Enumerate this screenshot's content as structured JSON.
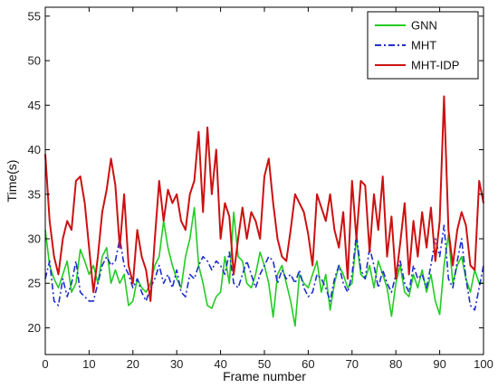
{
  "chart_data": {
    "type": "line",
    "xlabel": "Frame number",
    "ylabel": "Time(s)",
    "xlim": [
      0,
      100
    ],
    "ylim": [
      17,
      56
    ],
    "xticks": [
      0,
      10,
      20,
      30,
      40,
      50,
      60,
      70,
      80,
      90,
      100
    ],
    "yticks": [
      20,
      25,
      30,
      35,
      40,
      45,
      50,
      55
    ],
    "grid": false,
    "legend_position": "top-right",
    "series": [
      {
        "name": "GNN",
        "color": "#22cc22",
        "dash": "solid",
        "x": [
          0,
          1,
          2,
          3,
          4,
          5,
          6,
          7,
          8,
          9,
          10,
          11,
          12,
          13,
          14,
          15,
          16,
          17,
          18,
          19,
          20,
          21,
          22,
          23,
          24,
          25,
          26,
          27,
          28,
          29,
          30,
          31,
          32,
          33,
          34,
          35,
          36,
          37,
          38,
          39,
          40,
          41,
          42,
          43,
          44,
          45,
          46,
          47,
          48,
          49,
          50,
          51,
          52,
          53,
          54,
          55,
          56,
          57,
          58,
          59,
          60,
          61,
          62,
          63,
          64,
          65,
          66,
          67,
          68,
          69,
          70,
          71,
          72,
          73,
          74,
          75,
          76,
          77,
          78,
          79,
          80,
          81,
          82,
          83,
          84,
          85,
          86,
          87,
          88,
          89,
          90,
          91,
          92,
          93,
          94,
          95,
          96,
          97,
          98,
          99,
          100
        ],
        "values": [
          31.0,
          27.0,
          25.5,
          24.5,
          26.0,
          27.5,
          24.0,
          25.0,
          28.8,
          27.5,
          26.0,
          27.0,
          25.0,
          28.0,
          29.0,
          25.0,
          26.5,
          25.0,
          26.0,
          22.5,
          23.0,
          25.5,
          24.5,
          24.0,
          25.0,
          27.0,
          28.0,
          32.0,
          29.0,
          27.0,
          25.5,
          24.5,
          28.0,
          30.0,
          33.5,
          27.0,
          25.0,
          22.5,
          22.2,
          23.5,
          24.0,
          28.0,
          25.0,
          33.0,
          28.0,
          27.5,
          25.0,
          24.5,
          26.0,
          28.5,
          27.0,
          25.0,
          21.2,
          26.0,
          27.0,
          25.0,
          23.0,
          20.2,
          26.0,
          25.0,
          24.5,
          26.0,
          27.5,
          24.0,
          26.0,
          22.0,
          25.0,
          27.0,
          26.0,
          24.5,
          25.0,
          30.0,
          26.0,
          25.5,
          27.0,
          24.5,
          27.5,
          26.0,
          24.5,
          21.3,
          25.0,
          27.0,
          24.0,
          23.5,
          26.0,
          24.5,
          26.5,
          24.0,
          26.0,
          23.0,
          21.5,
          27.0,
          30.5,
          25.0,
          27.0,
          28.0,
          25.5,
          24.0,
          26.5,
          25.0,
          25.0
        ]
      },
      {
        "name": "MHT",
        "color": "#1f2fcc",
        "dash": "dashdot",
        "x": [
          0,
          1,
          2,
          3,
          4,
          5,
          6,
          7,
          8,
          9,
          10,
          11,
          12,
          13,
          14,
          15,
          16,
          17,
          18,
          19,
          20,
          21,
          22,
          23,
          24,
          25,
          26,
          27,
          28,
          29,
          30,
          31,
          32,
          33,
          34,
          35,
          36,
          37,
          38,
          39,
          40,
          41,
          42,
          43,
          44,
          45,
          46,
          47,
          48,
          49,
          50,
          51,
          52,
          53,
          54,
          55,
          56,
          57,
          58,
          59,
          60,
          61,
          62,
          63,
          64,
          65,
          66,
          67,
          68,
          69,
          70,
          71,
          72,
          73,
          74,
          75,
          76,
          77,
          78,
          79,
          80,
          81,
          82,
          83,
          84,
          85,
          86,
          87,
          88,
          89,
          90,
          91,
          92,
          93,
          94,
          95,
          96,
          97,
          98,
          99,
          100
        ],
        "values": [
          25.5,
          27.5,
          23.0,
          22.5,
          25.5,
          23.5,
          25.0,
          27.5,
          24.0,
          23.5,
          23.0,
          23.0,
          25.0,
          27.0,
          28.0,
          27.0,
          27.5,
          30.0,
          27.0,
          26.0,
          24.5,
          25.5,
          24.0,
          23.0,
          24.5,
          25.5,
          27.0,
          25.0,
          26.0,
          24.5,
          26.5,
          24.0,
          23.5,
          26.0,
          25.5,
          27.0,
          28.0,
          27.5,
          26.5,
          27.5,
          27.0,
          26.0,
          28.5,
          25.0,
          24.5,
          26.0,
          27.5,
          26.0,
          24.5,
          26.0,
          27.0,
          28.0,
          27.5,
          25.0,
          26.5,
          25.5,
          26.0,
          25.0,
          26.5,
          24.5,
          23.5,
          24.0,
          26.0,
          25.5,
          24.5,
          23.0,
          25.5,
          27.0,
          25.0,
          24.0,
          26.0,
          30.5,
          26.5,
          25.5,
          29.0,
          27.0,
          24.5,
          26.5,
          25.0,
          24.0,
          26.0,
          27.5,
          25.0,
          24.0,
          27.0,
          25.5,
          26.0,
          24.5,
          27.0,
          30.0,
          28.0,
          31.5,
          25.5,
          24.5,
          27.5,
          30.0,
          25.5,
          22.5,
          22.0,
          24.5,
          27.0
        ]
      },
      {
        "name": "MHT-IDP",
        "color": "#cc1111",
        "dash": "solid",
        "x": [
          0,
          1,
          2,
          3,
          4,
          5,
          6,
          7,
          8,
          9,
          10,
          11,
          12,
          13,
          14,
          15,
          16,
          17,
          18,
          19,
          20,
          21,
          22,
          23,
          24,
          25,
          26,
          27,
          28,
          29,
          30,
          31,
          32,
          33,
          34,
          35,
          36,
          37,
          38,
          39,
          40,
          41,
          42,
          43,
          44,
          45,
          46,
          47,
          48,
          49,
          50,
          51,
          52,
          53,
          54,
          55,
          56,
          57,
          58,
          59,
          60,
          61,
          62,
          63,
          64,
          65,
          66,
          67,
          68,
          69,
          70,
          71,
          72,
          73,
          74,
          75,
          76,
          77,
          78,
          79,
          80,
          81,
          82,
          83,
          84,
          85,
          86,
          87,
          88,
          89,
          90,
          91,
          92,
          93,
          94,
          95,
          96,
          97,
          98,
          99,
          100
        ],
        "values": [
          39.5,
          32.0,
          28.0,
          26.0,
          30.0,
          32.0,
          31.0,
          36.5,
          37.0,
          34.0,
          29.0,
          24.0,
          28.0,
          33.0,
          35.5,
          39.0,
          36.0,
          29.0,
          35.0,
          27.0,
          25.0,
          31.0,
          28.0,
          26.5,
          23.0,
          30.0,
          36.5,
          32.0,
          35.5,
          34.0,
          35.0,
          32.0,
          31.0,
          35.0,
          36.5,
          42.0,
          33.0,
          42.5,
          35.0,
          40.0,
          30.0,
          34.0,
          32.5,
          26.0,
          30.0,
          33.5,
          30.0,
          33.0,
          32.0,
          30.0,
          37.0,
          39.0,
          34.0,
          30.0,
          28.0,
          27.5,
          31.0,
          35.0,
          34.0,
          33.0,
          30.5,
          27.0,
          35.0,
          33.5,
          32.0,
          35.0,
          31.0,
          29.0,
          33.0,
          25.5,
          36.5,
          30.0,
          36.5,
          36.0,
          28.5,
          35.0,
          31.0,
          37.0,
          28.0,
          32.5,
          25.5,
          29.5,
          34.0,
          26.0,
          32.0,
          28.0,
          33.0,
          29.0,
          33.5,
          27.5,
          32.0,
          46.0,
          31.0,
          27.0,
          31.0,
          33.0,
          31.5,
          27.0,
          26.5,
          36.5,
          34.0
        ]
      }
    ]
  }
}
